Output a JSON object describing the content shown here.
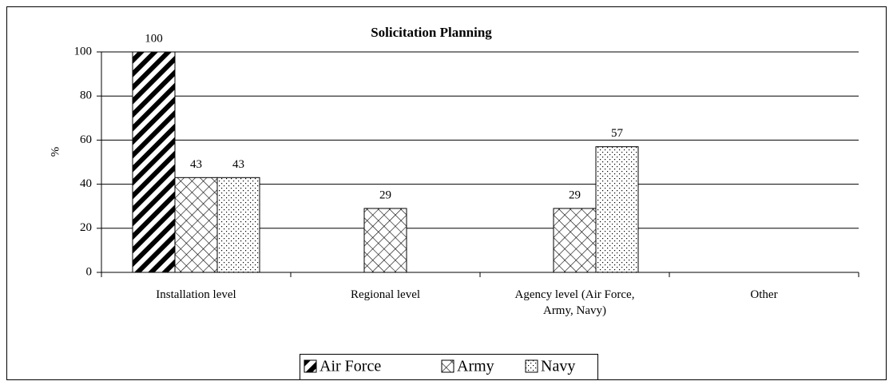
{
  "chart_data": {
    "type": "bar",
    "title": "Solicitation Planning",
    "y_label": "%",
    "categories": [
      "Installation level",
      "Regional level",
      "Agency level (Air Force, Army, Navy)",
      "Other"
    ],
    "series": [
      {
        "name": "Air Force",
        "color": "#000000",
        "pattern": "diagonal",
        "values": [
          100,
          null,
          null,
          null
        ]
      },
      {
        "name": "Army",
        "color": "#000000",
        "pattern": "crosshatch",
        "values": [
          43,
          29,
          29,
          null
        ]
      },
      {
        "name": "Navy",
        "color": "#000000",
        "pattern": "dots",
        "values": [
          43,
          null,
          57,
          null
        ]
      }
    ],
    "ylim": [
      0,
      100
    ],
    "yticks": [
      0,
      20,
      40,
      60,
      80,
      100
    ],
    "grid": true,
    "legend": "bottom"
  }
}
